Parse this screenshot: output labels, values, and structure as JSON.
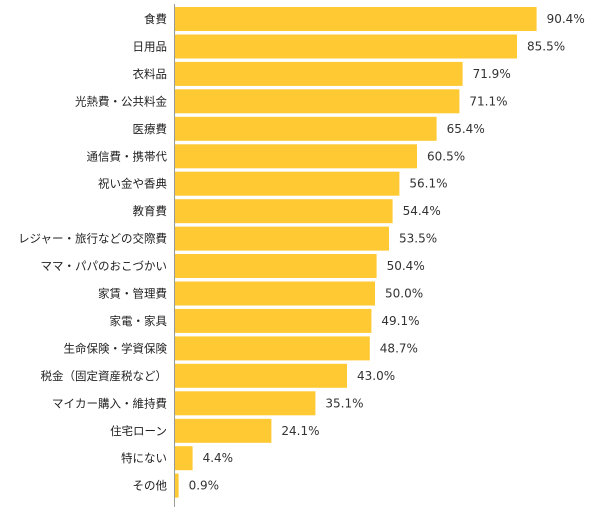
{
  "chart_data": {
    "type": "bar",
    "orientation": "horizontal",
    "categories": [
      "食費",
      "日用品",
      "衣料品",
      "光熱費・公共料金",
      "医療費",
      "通信費・携帯代",
      "祝い金や香典",
      "教育費",
      "レジャー・旅行などの交際費",
      "ママ・パパのおこづかい",
      "家賃・管理費",
      "家電・家具",
      "生命保険・学資保険",
      "税金（固定資産税など）",
      "マイカー購入・維持費",
      "住宅ローン",
      "特にない",
      "その他"
    ],
    "values": [
      90.4,
      85.5,
      71.9,
      71.1,
      65.4,
      60.5,
      56.1,
      54.4,
      53.5,
      50.4,
      50.0,
      49.1,
      48.7,
      43.0,
      35.1,
      24.1,
      4.4,
      0.9
    ],
    "value_labels": [
      "90.4%",
      "85.5%",
      "71.9%",
      "71.1%",
      "65.4%",
      "60.5%",
      "56.1%",
      "54.4%",
      "53.5%",
      "50.4%",
      "50.0%",
      "49.1%",
      "48.7%",
      "43.0%",
      "35.1%",
      "24.1%",
      "4.4%",
      "0.9%"
    ],
    "xlim": [
      0,
      100
    ],
    "grid": false,
    "bar_color": "#FFC933",
    "axis_color": "#999999"
  }
}
